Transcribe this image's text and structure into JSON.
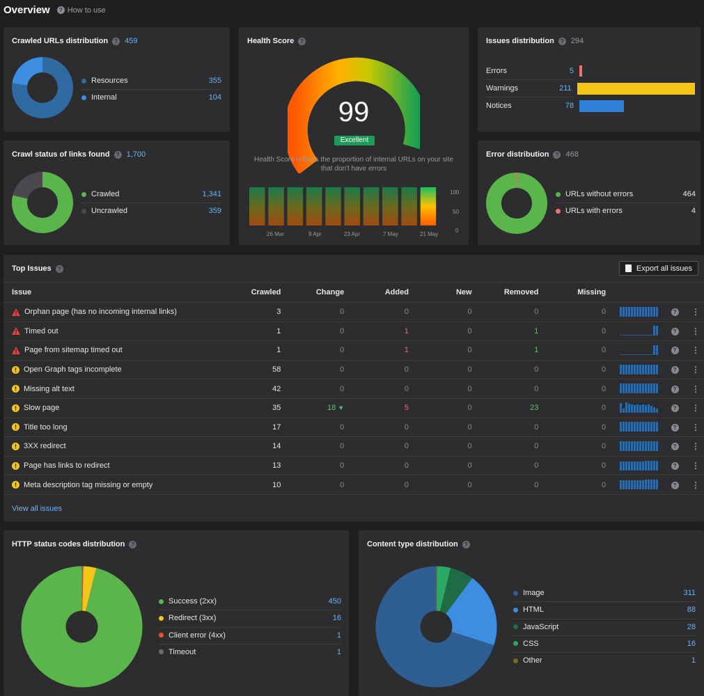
{
  "header": {
    "title": "Overview",
    "how_to_use": "How to use"
  },
  "crawled_urls": {
    "title": "Crawled URLs distribution",
    "total": "459",
    "items": [
      {
        "label": "Resources",
        "value": "355",
        "color": "#2f6aa3"
      },
      {
        "label": "Internal",
        "value": "104",
        "color": "#3d8ee0"
      }
    ]
  },
  "crawl_status": {
    "title": "Crawl status of links found",
    "total": "1,700",
    "items": [
      {
        "label": "Crawled",
        "value": "1,341",
        "color": "#5ab54b"
      },
      {
        "label": "Uncrawled",
        "value": "359",
        "color": "#4a4a4e"
      }
    ]
  },
  "health": {
    "title": "Health Score",
    "score": "99",
    "badge": "Excellent",
    "description": "Health Score reflects the proportion of internal URLs on your site that don't have errors",
    "y_ticks": [
      "100",
      "50",
      "0"
    ],
    "x_ticks": [
      "26 Mar",
      "9 Apr",
      "23 Apr",
      "7 May",
      "21 May"
    ]
  },
  "issues_dist": {
    "title": "Issues distribution",
    "total": "294",
    "items": [
      {
        "label": "Errors",
        "value": "5",
        "color": "#f07070"
      },
      {
        "label": "Warnings",
        "value": "211",
        "color": "#f5c518"
      },
      {
        "label": "Notices",
        "value": "78",
        "color": "#2f7fd8"
      }
    ]
  },
  "error_dist": {
    "title": "Error distribution",
    "total": "468",
    "items": [
      {
        "label": "URLs without errors",
        "value": "464",
        "color": "#5ab54b"
      },
      {
        "label": "URLs with errors",
        "value": "4",
        "color": "#f07070"
      }
    ]
  },
  "top_issues": {
    "title": "Top Issues",
    "export_label": "Export all issues",
    "view_all": "View all issues",
    "columns": [
      "Issue",
      "Crawled",
      "Change",
      "Added",
      "New",
      "Removed",
      "Missing"
    ],
    "rows": [
      {
        "type": "error",
        "name": "Orphan page (has no incoming internal links)",
        "crawled": "3",
        "change": "0",
        "added": "0",
        "new": "0",
        "removed": "0",
        "missing": "0",
        "spark": [
          0.9,
          0.9,
          0.9,
          0.9,
          0.9,
          0.9,
          0.9,
          0.9,
          0.9,
          0.9,
          0.9,
          0.9,
          0.9,
          0.9
        ]
      },
      {
        "type": "error",
        "name": "Timed out",
        "crawled": "1",
        "change": "0",
        "added": "1",
        "new": "0",
        "removed": "1",
        "missing": "0",
        "spark": [
          0.05,
          0.05,
          0.05,
          0.05,
          0.05,
          0.05,
          0.05,
          0.05,
          0.05,
          0.05,
          0.05,
          0.05,
          0.9,
          0.9
        ]
      },
      {
        "type": "error",
        "name": "Page from sitemap timed out",
        "crawled": "1",
        "change": "0",
        "added": "1",
        "new": "0",
        "removed": "1",
        "missing": "0",
        "spark": [
          0.05,
          0.05,
          0.05,
          0.05,
          0.05,
          0.05,
          0.05,
          0.05,
          0.05,
          0.05,
          0.05,
          0.05,
          0.9,
          0.9
        ]
      },
      {
        "type": "warning",
        "name": "Open Graph tags incomplete",
        "crawled": "58",
        "change": "0",
        "added": "0",
        "new": "0",
        "removed": "0",
        "missing": "0",
        "spark": [
          0.9,
          0.9,
          0.9,
          0.9,
          0.9,
          0.9,
          0.9,
          0.9,
          0.9,
          0.9,
          0.9,
          0.9,
          0.9,
          0.9
        ]
      },
      {
        "type": "warning",
        "name": "Missing alt text",
        "crawled": "42",
        "change": "0",
        "added": "0",
        "new": "0",
        "removed": "0",
        "missing": "0",
        "spark": [
          0.9,
          0.9,
          0.9,
          0.9,
          0.9,
          0.9,
          0.9,
          0.9,
          0.9,
          0.9,
          0.9,
          0.9,
          0.9,
          0.9
        ]
      },
      {
        "type": "warning",
        "name": "Slow page",
        "crawled": "35",
        "change": "18",
        "added": "5",
        "new": "0",
        "removed": "23",
        "missing": "0",
        "spark": [
          0.85,
          0.4,
          0.95,
          0.8,
          0.75,
          0.7,
          0.75,
          0.7,
          0.75,
          0.7,
          0.75,
          0.6,
          0.5,
          0.35
        ]
      },
      {
        "type": "warning",
        "name": "Title too long",
        "crawled": "17",
        "change": "0",
        "added": "0",
        "new": "0",
        "removed": "0",
        "missing": "0",
        "spark": [
          0.9,
          0.9,
          0.9,
          0.9,
          0.9,
          0.9,
          0.9,
          0.9,
          0.9,
          0.9,
          0.9,
          0.9,
          0.9,
          0.9
        ]
      },
      {
        "type": "warning",
        "name": "3XX redirect",
        "crawled": "14",
        "change": "0",
        "added": "0",
        "new": "0",
        "removed": "0",
        "missing": "0",
        "spark": [
          0.9,
          0.9,
          0.9,
          0.9,
          0.9,
          0.9,
          0.9,
          0.9,
          0.9,
          0.9,
          0.9,
          0.9,
          0.9,
          0.9
        ]
      },
      {
        "type": "warning",
        "name": "Page has links to redirect",
        "crawled": "13",
        "change": "0",
        "added": "0",
        "new": "0",
        "removed": "0",
        "missing": "0",
        "spark": [
          0.8,
          0.8,
          0.8,
          0.8,
          0.8,
          0.8,
          0.8,
          0.8,
          0.8,
          0.85,
          0.9,
          0.9,
          0.9,
          0.9
        ]
      },
      {
        "type": "warning",
        "name": "Meta description tag missing or empty",
        "crawled": "10",
        "change": "0",
        "added": "0",
        "new": "0",
        "removed": "0",
        "missing": "0",
        "spark": [
          0.8,
          0.8,
          0.8,
          0.8,
          0.8,
          0.8,
          0.8,
          0.8,
          0.8,
          0.85,
          0.9,
          0.9,
          0.9,
          0.9
        ]
      }
    ]
  },
  "http_status": {
    "title": "HTTP status codes distribution",
    "items": [
      {
        "label": "Success (2xx)",
        "value": "450",
        "color": "#5ab54b"
      },
      {
        "label": "Redirect (3xx)",
        "value": "16",
        "color": "#f5c518"
      },
      {
        "label": "Client error (4xx)",
        "value": "1",
        "color": "#e8542a"
      },
      {
        "label": "Timeout",
        "value": "1",
        "color": "#6b6b6f"
      }
    ]
  },
  "content_type": {
    "title": "Content type distribution",
    "items": [
      {
        "label": "Image",
        "value": "311",
        "color": "#2f5f92"
      },
      {
        "label": "HTML",
        "value": "88",
        "color": "#3d8ee0"
      },
      {
        "label": "JavaScript",
        "value": "28",
        "color": "#1e6b45"
      },
      {
        "label": "CSS",
        "value": "16",
        "color": "#2aa865"
      },
      {
        "label": "Other",
        "value": "1",
        "color": "#7a6a14"
      }
    ]
  }
}
